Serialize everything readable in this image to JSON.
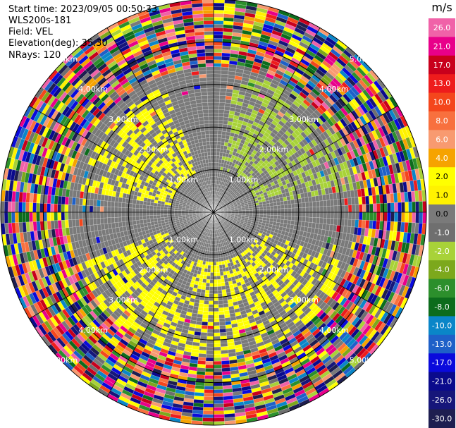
{
  "info": {
    "start_time": "Start time: 2023/09/05 00:50:33",
    "station": "WLS200s-181",
    "field": "Field: VEL",
    "elevation": "Elevation(deg): 35.30",
    "nrays": "NRays: 120"
  },
  "chart_data": {
    "type": "heatmap",
    "projection": "polar PPI",
    "range_rings_km": [
      1,
      2,
      3,
      4,
      5
    ],
    "range_ring_labels": [
      "1.00km",
      "2.00km",
      "3.00km",
      "4.00km",
      "5.00km"
    ],
    "max_range_km": 5,
    "n_rays": 120,
    "colorbar": {
      "unit": "m/s",
      "tick_labels": [
        "26.0",
        "21.0",
        "17.0",
        "13.0",
        "10.0",
        "8.0",
        "6.0",
        "4.0",
        "2.0",
        "1.0",
        "0.0",
        "-1.0",
        "-2.0",
        "-4.0",
        "-6.0",
        "-8.0",
        "-10.0",
        "-13.0",
        "-17.0",
        "-21.0",
        "-26.0",
        "-30.0"
      ],
      "colors": [
        "#f062a8",
        "#e8008a",
        "#c8001c",
        "#ee1c1c",
        "#f4461c",
        "#f8703e",
        "#f89a70",
        "#f6a300",
        "#ffff00",
        "#fff200",
        "#7a7a7a",
        "#6f6f6f",
        "#a8d238",
        "#7ca81c",
        "#2c8f2c",
        "#0c6c1c",
        "#0a86c8",
        "#1e60c8",
        "#0a0adc",
        "#0a0a8c",
        "#16167a",
        "#1e1e50"
      ]
    },
    "observed_regions": [
      {
        "range_km": [
          0,
          2
        ],
        "azimuth_deg": [
          0,
          360
        ],
        "dominant_value_ms": 0.0,
        "note": "near-zero velocity core"
      },
      {
        "range_km": [
          1,
          3.4
        ],
        "azimuth_deg": [
          10,
          80
        ],
        "dominant_value_ms": -2.0
      },
      {
        "range_km": [
          1,
          3.2
        ],
        "azimuth_deg": [
          280,
          340
        ],
        "dominant_value_ms": 2.0
      },
      {
        "range_km": [
          1.2,
          3.4
        ],
        "azimuth_deg": [
          110,
          250
        ],
        "dominant_value_ms": 2.0
      },
      {
        "range_km": [
          3.4,
          5
        ],
        "azimuth_deg": [
          0,
          360
        ],
        "dominant_value_ms": "mixed -30.0..26.0",
        "note": "noise outer ring"
      }
    ]
  }
}
